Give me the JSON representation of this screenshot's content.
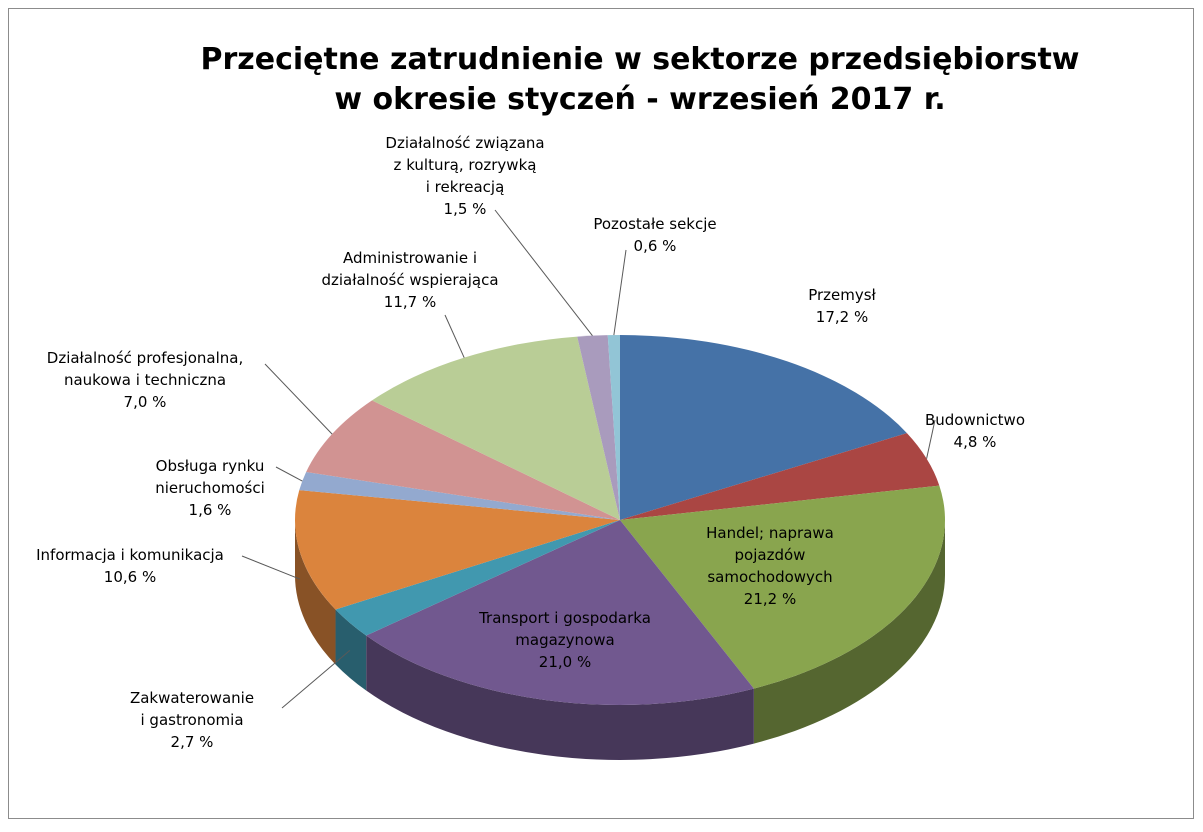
{
  "chart_data": {
    "type": "pie3d",
    "title": "Przeciętne zatrudnienie w sektorze przedsiębiorstw\nw okresie styczeń - wrzesień 2017 r.",
    "categories": [
      "Przemysł",
      "Budownictwo",
      "Handel; naprawa\npojazdów\nsamochodowych",
      "Transport i gospodarka\nmagazynowa",
      "Zakwaterowanie\ni gastronomia",
      "Informacja i komunikacja",
      "Obsługa rynku\nnieruchomości",
      "Działalność profesjonalna,\nnaukowa i techniczna",
      "Administrowanie i\ndziałalność wspierająca",
      "Działalność związana\nz kulturą, rozrywką\ni rekreacją",
      "Pozostałe sekcje"
    ],
    "values": [
      17.2,
      4.8,
      21.2,
      21.0,
      2.7,
      10.6,
      1.6,
      7.0,
      11.7,
      1.5,
      0.6
    ],
    "value_labels": [
      "17,2 %",
      "4,8 %",
      "21,2 %",
      "21,0 %",
      "2,7 %",
      "10,6 %",
      "1,6 %",
      "7,0 %",
      "11,7 %",
      "1,5 %",
      "0,6 %"
    ],
    "colors": [
      "#4572a7",
      "#aa4643",
      "#89a54e",
      "#71588f",
      "#4198af",
      "#db843d",
      "#93a9cf",
      "#d19392",
      "#b9cd96",
      "#a99bbd",
      "#92c5d6"
    ]
  }
}
